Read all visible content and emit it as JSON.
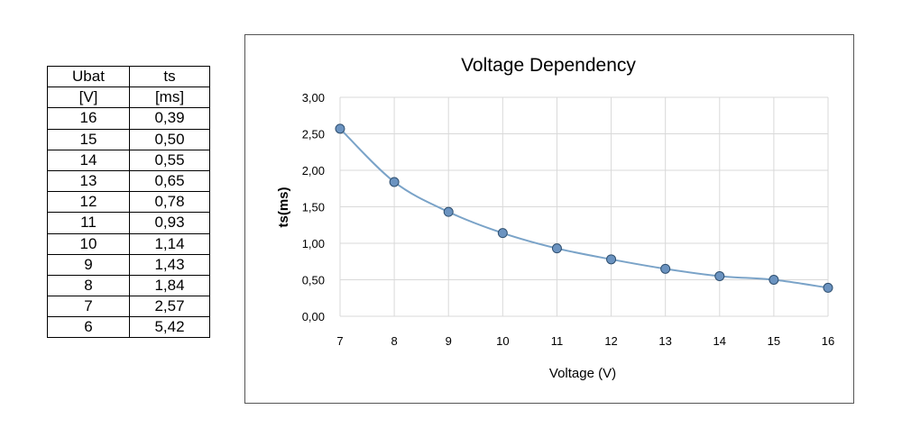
{
  "table": {
    "headers": [
      "Ubat",
      "ts"
    ],
    "units": [
      "[V]",
      "[ms]"
    ],
    "rows": [
      [
        "16",
        "0,39"
      ],
      [
        "15",
        "0,50"
      ],
      [
        "14",
        "0,55"
      ],
      [
        "13",
        "0,65"
      ],
      [
        "12",
        "0,78"
      ],
      [
        "11",
        "0,93"
      ],
      [
        "10",
        "1,14"
      ],
      [
        "9",
        "1,43"
      ],
      [
        "8",
        "1,84"
      ],
      [
        "7",
        "2,57"
      ],
      [
        "6",
        "5,42"
      ]
    ]
  },
  "chart_data": {
    "type": "line",
    "title": "Voltage Dependency",
    "xlabel": "Voltage (V)",
    "ylabel": "ts(ms)",
    "x": [
      7,
      8,
      9,
      10,
      11,
      12,
      13,
      14,
      15,
      16
    ],
    "series": [
      {
        "values": [
          2.57,
          1.84,
          1.43,
          1.14,
          0.93,
          0.78,
          0.65,
          0.55,
          0.5,
          0.39
        ]
      }
    ],
    "xlim": [
      7,
      16
    ],
    "ylim": [
      0,
      3
    ],
    "y_ticks": [
      "0,00",
      "0,50",
      "1,00",
      "1,50",
      "2,00",
      "2,50",
      "3,00"
    ],
    "x_ticks": [
      "7",
      "8",
      "9",
      "10",
      "11",
      "12",
      "13",
      "14",
      "15",
      "16"
    ],
    "grid": true,
    "line_color": "#7aa3c8",
    "marker_fill": "#6b93c0",
    "marker_stroke": "#2f4f6f",
    "grid_color": "#d9d9d9"
  }
}
